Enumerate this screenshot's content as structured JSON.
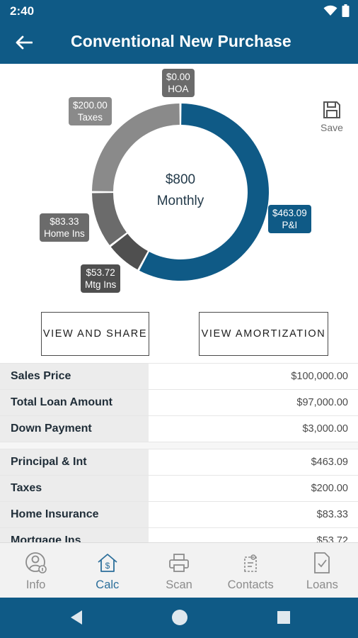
{
  "status_bar": {
    "time": "2:40"
  },
  "app_bar": {
    "title": "Conventional New Purchase"
  },
  "donut": {
    "center_amount": "$800",
    "center_label": "Monthly",
    "segments": [
      {
        "name": "P&I",
        "amount": "$463.09",
        "value": 463.09,
        "color": "#0f5a86"
      },
      {
        "name": "Mtg Ins",
        "amount": "$53.72",
        "value": 53.72,
        "color": "#4f4f4f"
      },
      {
        "name": "Home Ins",
        "amount": "$83.33",
        "value": 83.33,
        "color": "#6b6b6b"
      },
      {
        "name": "Taxes",
        "amount": "$200.00",
        "value": 200.0,
        "color": "#8a8a8a"
      },
      {
        "name": "HOA",
        "amount": "$0.00",
        "value": 0.0,
        "color": "#6b6b6b"
      }
    ]
  },
  "save": {
    "label": "Save"
  },
  "buttons": {
    "share": "VIEW AND SHARE",
    "amortization": "VIEW AMORTIZATION"
  },
  "loan_table": [
    {
      "label": "Sales Price",
      "value": "$100,000.00"
    },
    {
      "label": "Total Loan Amount",
      "value": "$97,000.00"
    },
    {
      "label": "Down Payment",
      "value": "$3,000.00"
    }
  ],
  "payment_table": [
    {
      "label": "Principal & Int",
      "value": "$463.09"
    },
    {
      "label": "Taxes",
      "value": "$200.00"
    },
    {
      "label": "Home Insurance",
      "value": "$83.33"
    },
    {
      "label": "Mortgage Ins",
      "value": "$53.72"
    }
  ],
  "bottom_nav": [
    {
      "label": "Info",
      "icon": "person-info-icon"
    },
    {
      "label": "Calc",
      "icon": "house-dollar-icon",
      "active": true
    },
    {
      "label": "Scan",
      "icon": "printer-icon"
    },
    {
      "label": "Contacts",
      "icon": "contacts-icon"
    },
    {
      "label": "Loans",
      "icon": "document-check-icon"
    }
  ]
}
